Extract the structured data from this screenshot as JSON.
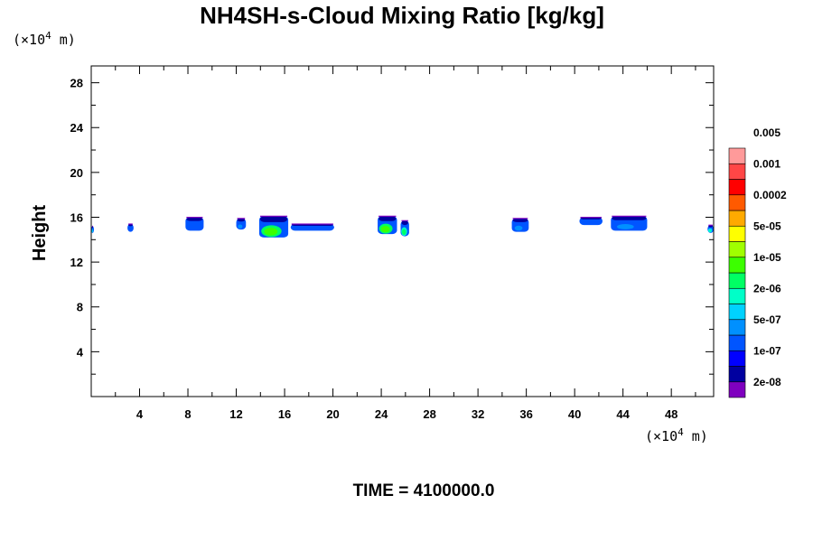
{
  "chart_data": {
    "type": "heatmap",
    "title": "NH4SH-s-Cloud Mixing Ratio [kg/kg]",
    "ylabel": "Height",
    "x_unit_label": "(×10^4 m)",
    "y_unit_label": "(×10^4 m)",
    "unit_prefix": "(×10",
    "unit_exp": "4",
    "unit_suffix": " m)",
    "xlim": [
      0,
      51.5
    ],
    "ylim": [
      0,
      29.5
    ],
    "x_ticks": [
      4,
      8,
      12,
      16,
      20,
      24,
      28,
      32,
      36,
      40,
      44,
      48
    ],
    "y_ticks": [
      4,
      8,
      12,
      16,
      20,
      24,
      28
    ],
    "time_label": "TIME = 4100000.0",
    "colorbar": {
      "colors": [
        "#7f00bf",
        "#0000a0",
        "#0000ff",
        "#0055ff",
        "#0090ff",
        "#00d2ff",
        "#00ffc8",
        "#00ff64",
        "#3cff00",
        "#a0ff00",
        "#ffff00",
        "#ffaa00",
        "#ff5a00",
        "#ff0000",
        "#ff4646",
        "#ff9a9a"
      ],
      "labels": [
        "2e-08",
        "1e-07",
        "5e-07",
        "2e-06",
        "1e-05",
        "5e-05",
        "0.0002",
        "0.001",
        "0.005"
      ]
    },
    "cloud_patches": [
      {
        "x0": 0.0,
        "x1": 0.2,
        "ybot": 14.6,
        "ytop": 15.2,
        "level": 5
      },
      {
        "x0": 3.0,
        "x1": 3.5,
        "ybot": 14.7,
        "ytop": 15.4,
        "level": 3
      },
      {
        "x0": 7.8,
        "x1": 9.3,
        "ybot": 14.8,
        "ytop": 16.0,
        "level": 3
      },
      {
        "x0": 12.0,
        "x1": 12.8,
        "ybot": 14.9,
        "ytop": 15.9,
        "level": 4
      },
      {
        "x0": 13.9,
        "x1": 16.3,
        "ybot": 14.2,
        "ytop": 16.1,
        "level": 8
      },
      {
        "x0": 16.5,
        "x1": 20.1,
        "ybot": 14.8,
        "ytop": 15.4,
        "level": 3
      },
      {
        "x0": 23.7,
        "x1": 25.3,
        "ybot": 14.5,
        "ytop": 16.1,
        "level": 8
      },
      {
        "x0": 25.6,
        "x1": 26.3,
        "ybot": 14.3,
        "ytop": 15.7,
        "level": 7
      },
      {
        "x0": 34.8,
        "x1": 36.2,
        "ybot": 14.7,
        "ytop": 15.9,
        "level": 4
      },
      {
        "x0": 40.4,
        "x1": 42.3,
        "ybot": 15.3,
        "ytop": 16.0,
        "level": 3
      },
      {
        "x0": 43.0,
        "x1": 46.0,
        "ybot": 14.8,
        "ytop": 16.1,
        "level": 4
      },
      {
        "x0": 51.0,
        "x1": 51.5,
        "ybot": 14.6,
        "ytop": 15.3,
        "level": 6
      }
    ]
  }
}
